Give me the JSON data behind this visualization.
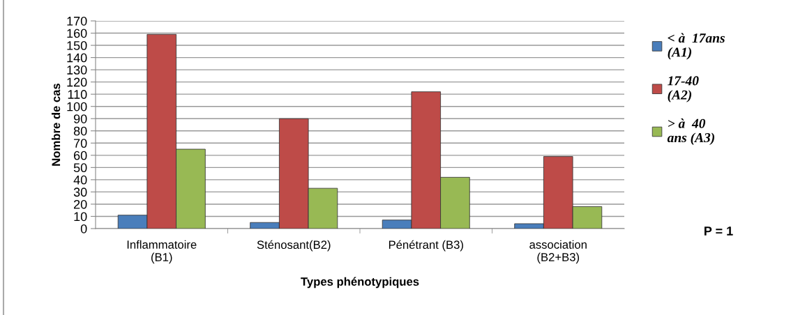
{
  "chart_data": {
    "type": "bar",
    "xlabel": "Types phénotypiques",
    "ylabel": "Nombre de cas",
    "categories": [
      "Inflammatoire\n(B1)",
      "Sténosant(B2)",
      "Pénétrant (B3)",
      "association\n(B2+B3)"
    ],
    "series": [
      {
        "name": "< à  17ans\n(A1)",
        "color": "#4a7ebb",
        "values": [
          11,
          5,
          7,
          4
        ]
      },
      {
        "name": "17-40\n(A2)",
        "color": "#be4b48",
        "values": [
          159,
          90,
          112,
          59
        ]
      },
      {
        "name": "> à  40\nans (A3)",
        "color": "#98b954",
        "values": [
          65,
          33,
          42,
          18
        ]
      }
    ],
    "ylim": [
      0,
      170
    ],
    "yticks": [
      0,
      10,
      20,
      30,
      40,
      50,
      60,
      70,
      80,
      90,
      100,
      110,
      120,
      130,
      140,
      150,
      160,
      170
    ],
    "grid": "y",
    "legend": "right",
    "annotations": [
      "P = 1"
    ]
  }
}
